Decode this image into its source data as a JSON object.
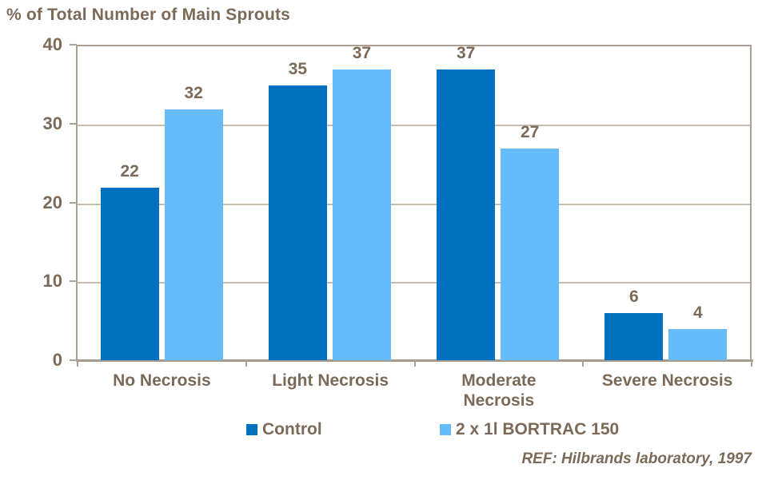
{
  "chart_data": {
    "type": "bar",
    "title": "% of Total Number of Main Sprouts",
    "categories": [
      "No Necrosis",
      "Light Necrosis",
      "Moderate\nNecrosis",
      "Severe Necrosis"
    ],
    "series": [
      {
        "name": "Control",
        "values": [
          22,
          35,
          37,
          6
        ],
        "color": "#0070C0"
      },
      {
        "name": "2 x 1l BORTRAC 150",
        "values": [
          32,
          37,
          27,
          4
        ],
        "color": "#66BBFA"
      }
    ],
    "xlabel": "",
    "ylabel": "% of Total Number of Main Sprouts",
    "ylim": [
      0,
      40
    ],
    "yticks": [
      0,
      10,
      20,
      30,
      40
    ],
    "grid": true,
    "legend_position": "bottom",
    "value_labels": true
  },
  "footer": {
    "reference": "REF: Hilbrands laboratory, 1997"
  },
  "colors": {
    "control_series": "#0070C0",
    "bortrac_series": "#66BBFA",
    "text": "#7A6A57",
    "gridline": "#C7BCAE",
    "axis": "#ABA091"
  }
}
